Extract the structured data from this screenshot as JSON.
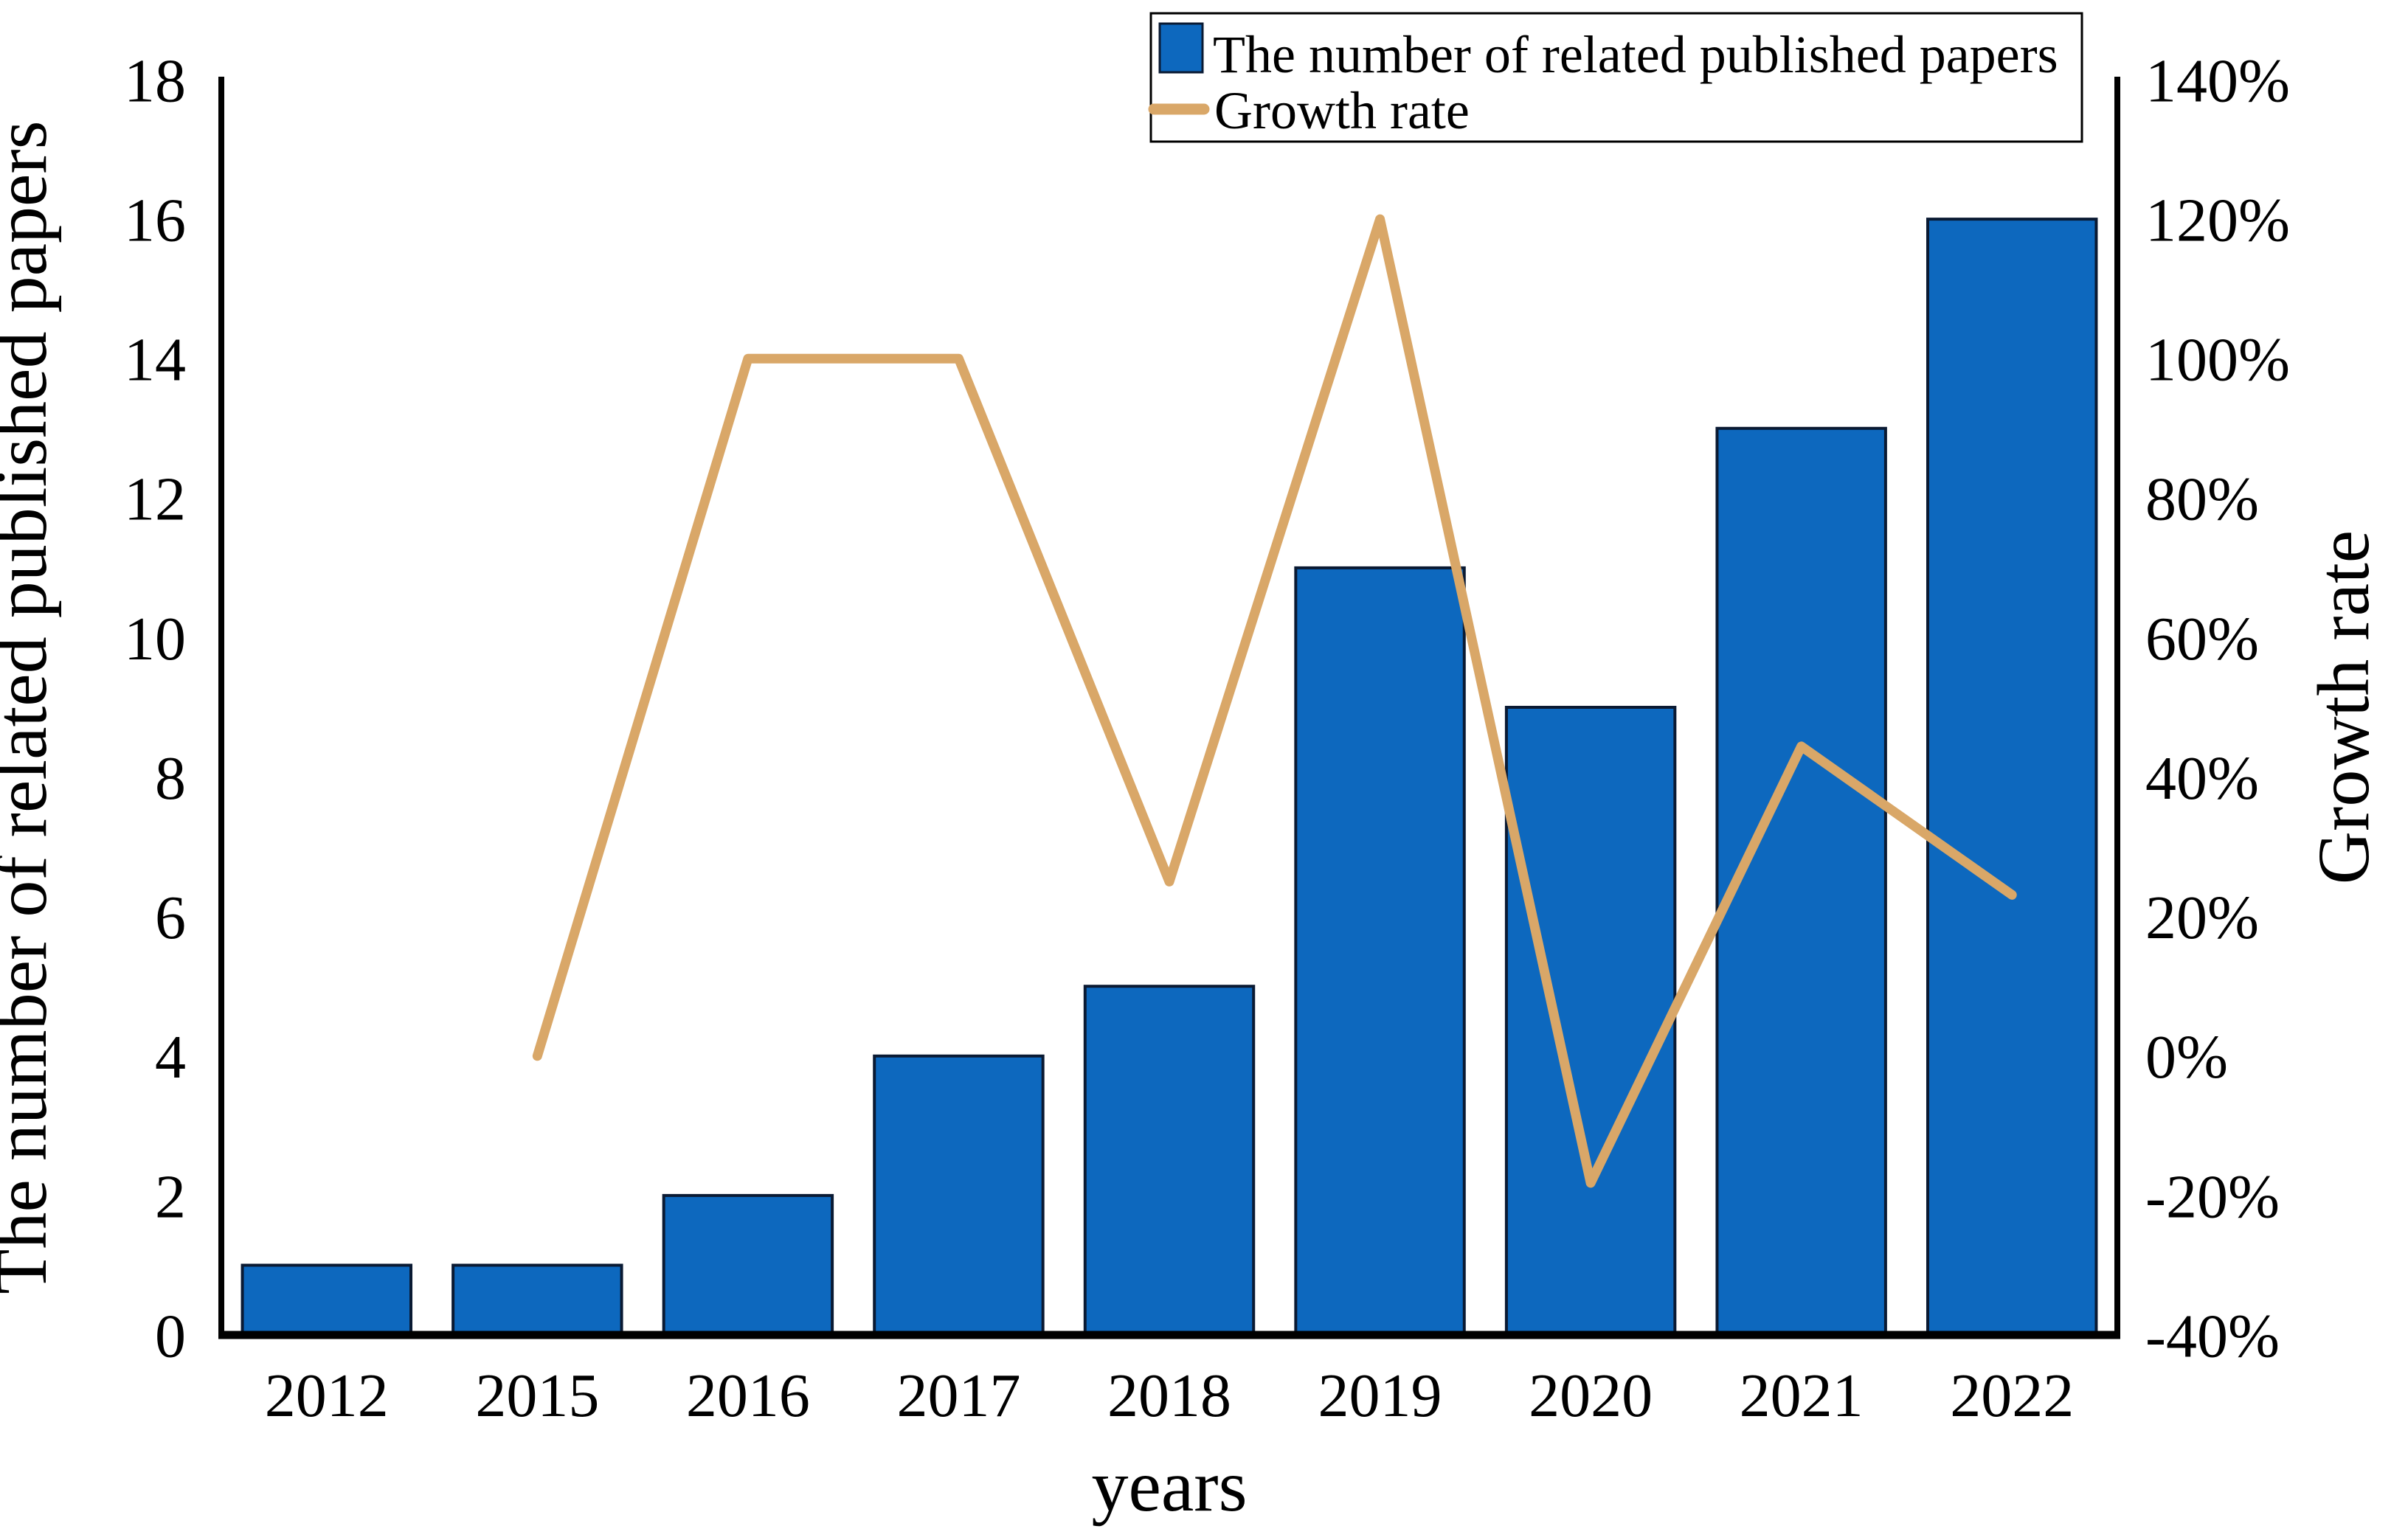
{
  "chart_data": {
    "type": "bar+line",
    "categories": [
      "2012",
      "2015",
      "2016",
      "2017",
      "2018",
      "2019",
      "2020",
      "2021",
      "2022"
    ],
    "series": [
      {
        "name": "The number of related published papers",
        "type": "bar",
        "axis": "left",
        "values": [
          1,
          1,
          2,
          4,
          5,
          11,
          9,
          13,
          16
        ],
        "color": "#0D68BE",
        "edge_color": "#0A1A33"
      },
      {
        "name": "Growth rate",
        "type": "line",
        "axis": "right",
        "values": [
          null,
          0,
          100,
          100,
          25,
          120,
          -18.2,
          44.4,
          23.1
        ],
        "color": "#D9A768"
      }
    ],
    "left_axis": {
      "label": "The number of related published papers",
      "min": 0,
      "max": 18,
      "ticks": [
        0,
        2,
        4,
        6,
        8,
        10,
        12,
        14,
        16,
        18
      ]
    },
    "right_axis": {
      "label": "Growth rate",
      "min": -40,
      "max": 140,
      "ticks": [
        -40,
        -20,
        0,
        20,
        40,
        60,
        80,
        100,
        120,
        140
      ],
      "tick_suffix": "%"
    },
    "x_axis": {
      "label": "years"
    },
    "legend": {
      "position": "top-right",
      "entries": [
        "The number of related published papers",
        "Growth rate"
      ]
    },
    "grid": false,
    "axis_color": "#000000",
    "background_color": "#ffffff"
  }
}
